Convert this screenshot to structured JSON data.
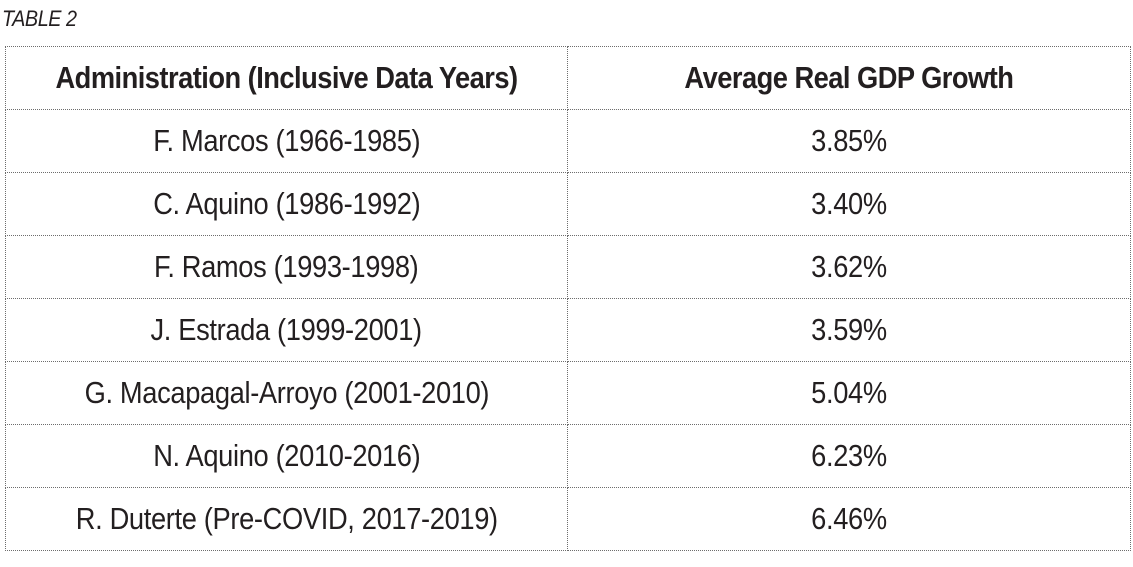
{
  "caption": "TABLE 2",
  "table": {
    "headers": [
      "Administration (Inclusive Data Years)",
      "Average Real GDP Growth"
    ],
    "rows": [
      [
        "F. Marcos (1966-1985)",
        "3.85%"
      ],
      [
        "C. Aquino (1986-1992)",
        "3.40%"
      ],
      [
        "F. Ramos (1993-1998)",
        "3.62%"
      ],
      [
        "J. Estrada (1999-2001)",
        "3.59%"
      ],
      [
        "G. Macapagal-Arroyo (2001-2010)",
        "5.04%"
      ],
      [
        "N. Aquino (2010-2016)",
        "6.23%"
      ],
      [
        "R. Duterte (Pre-COVID, 2017-2019)",
        "6.46%"
      ]
    ]
  }
}
